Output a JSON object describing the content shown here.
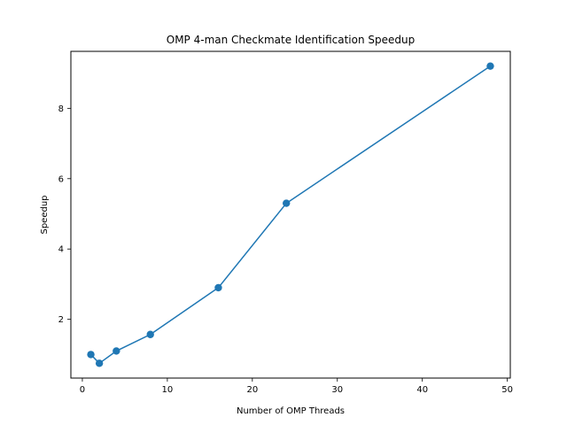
{
  "chart_data": {
    "type": "line",
    "title": "OMP 4-man Checkmate Identification Speedup",
    "xlabel": "Number of OMP Threads",
    "ylabel": "Speedup",
    "xlim": [
      -1.35,
      50.35
    ],
    "ylim": [
      0.33,
      9.62
    ],
    "x_ticks": [
      0,
      10,
      20,
      30,
      40,
      50
    ],
    "y_ticks": [
      2,
      4,
      6,
      8
    ],
    "grid": false,
    "series": [
      {
        "color": "#1f77b4",
        "marker": "circle",
        "points": [
          {
            "x": 1,
            "y": 1.0
          },
          {
            "x": 2,
            "y": 0.75
          },
          {
            "x": 4,
            "y": 1.1
          },
          {
            "x": 8,
            "y": 1.57
          },
          {
            "x": 16,
            "y": 2.9
          },
          {
            "x": 24,
            "y": 5.3
          },
          {
            "x": 48,
            "y": 9.2
          }
        ]
      }
    ]
  }
}
